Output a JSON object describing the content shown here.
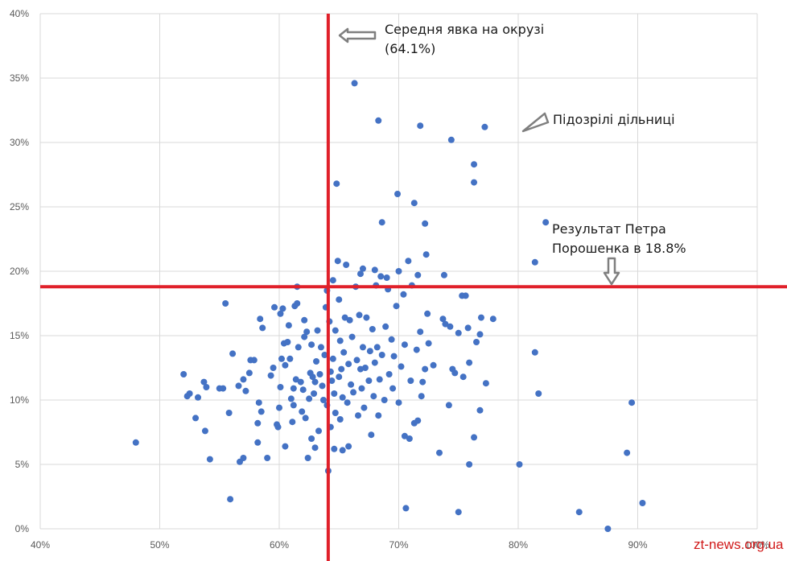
{
  "chart_data": {
    "type": "scatter",
    "xlim": [
      40,
      100
    ],
    "ylim": [
      0,
      40
    ],
    "x_ticks": [
      {
        "value": 40,
        "label": "40%"
      },
      {
        "value": 50,
        "label": "50%"
      },
      {
        "value": 60,
        "label": "60%"
      },
      {
        "value": 70,
        "label": "70%"
      },
      {
        "value": 80,
        "label": "80%"
      },
      {
        "value": 90,
        "label": "90%"
      },
      {
        "value": 100,
        "label": "100%"
      }
    ],
    "y_ticks": [
      {
        "value": 0,
        "label": "0%"
      },
      {
        "value": 5,
        "label": "5%"
      },
      {
        "value": 10,
        "label": "10%"
      },
      {
        "value": 15,
        "label": "15%"
      },
      {
        "value": 20,
        "label": "20%"
      },
      {
        "value": 25,
        "label": "25%"
      },
      {
        "value": 30,
        "label": "30%"
      },
      {
        "value": 35,
        "label": "35%"
      },
      {
        "value": 40,
        "label": "40%"
      }
    ],
    "grid": true,
    "point_color": "#4472C4",
    "line_color": "#E0202A",
    "reference_lines": {
      "vertical_x": 64.1,
      "horizontal_y": 18.8
    },
    "annotations": {
      "turnout_line1": "Середня явка на окрузі",
      "turnout_line2": "(64.1%)",
      "suspicious": "Підозрілі дільниці",
      "result_line1": "Результат Петра",
      "result_line2": "Порошенка в 18.8%"
    },
    "points": [
      [
        48.0,
        6.7
      ],
      [
        52.0,
        12.0
      ],
      [
        52.3,
        10.3
      ],
      [
        52.5,
        10.5
      ],
      [
        53.0,
        8.6
      ],
      [
        53.2,
        10.2
      ],
      [
        53.7,
        11.4
      ],
      [
        53.8,
        7.6
      ],
      [
        53.9,
        11.0
      ],
      [
        54.2,
        5.4
      ],
      [
        55.0,
        10.9
      ],
      [
        55.3,
        10.9
      ],
      [
        55.5,
        17.5
      ],
      [
        55.8,
        9.0
      ],
      [
        55.9,
        2.3
      ],
      [
        56.1,
        13.6
      ],
      [
        56.6,
        11.1
      ],
      [
        56.7,
        5.2
      ],
      [
        57.0,
        11.6
      ],
      [
        57.0,
        5.5
      ],
      [
        57.2,
        10.7
      ],
      [
        57.5,
        12.1
      ],
      [
        57.6,
        13.1
      ],
      [
        57.9,
        13.1
      ],
      [
        58.2,
        8.2
      ],
      [
        58.3,
        9.8
      ],
      [
        58.2,
        6.7
      ],
      [
        58.4,
        16.3
      ],
      [
        58.5,
        9.1
      ],
      [
        58.6,
        15.6
      ],
      [
        59.0,
        5.5
      ],
      [
        59.3,
        11.9
      ],
      [
        59.5,
        12.5
      ],
      [
        59.6,
        17.2
      ],
      [
        59.8,
        8.1
      ],
      [
        59.9,
        7.9
      ],
      [
        60.0,
        9.4
      ],
      [
        60.1,
        11.0
      ],
      [
        60.1,
        16.7
      ],
      [
        60.2,
        13.2
      ],
      [
        60.3,
        17.1
      ],
      [
        60.4,
        14.4
      ],
      [
        60.5,
        12.7
      ],
      [
        60.5,
        6.4
      ],
      [
        60.7,
        14.5
      ],
      [
        60.8,
        15.8
      ],
      [
        60.9,
        13.2
      ],
      [
        61.0,
        10.1
      ],
      [
        61.1,
        8.3
      ],
      [
        61.2,
        9.6
      ],
      [
        61.2,
        10.9
      ],
      [
        61.3,
        17.3
      ],
      [
        61.4,
        11.6
      ],
      [
        61.5,
        17.5
      ],
      [
        61.5,
        18.8
      ],
      [
        61.6,
        14.1
      ],
      [
        61.8,
        11.4
      ],
      [
        61.9,
        9.1
      ],
      [
        62.0,
        10.8
      ],
      [
        62.1,
        16.2
      ],
      [
        62.1,
        14.9
      ],
      [
        62.2,
        8.6
      ],
      [
        62.3,
        15.3
      ],
      [
        62.4,
        5.5
      ],
      [
        62.5,
        10.1
      ],
      [
        62.6,
        12.1
      ],
      [
        62.7,
        7.0
      ],
      [
        62.7,
        14.3
      ],
      [
        62.8,
        11.8
      ],
      [
        62.9,
        10.5
      ],
      [
        63.0,
        11.4
      ],
      [
        63.0,
        6.3
      ],
      [
        63.1,
        13.0
      ],
      [
        63.2,
        15.4
      ],
      [
        63.3,
        7.6
      ],
      [
        63.4,
        12.0
      ],
      [
        63.5,
        14.1
      ],
      [
        63.6,
        11.1
      ],
      [
        63.7,
        10.0
      ],
      [
        63.8,
        13.5
      ],
      [
        63.9,
        17.2
      ],
      [
        64.0,
        9.6
      ],
      [
        64.0,
        18.5
      ],
      [
        64.1,
        4.5
      ],
      [
        64.2,
        16.1
      ],
      [
        64.3,
        12.2
      ],
      [
        64.3,
        7.9
      ],
      [
        64.4,
        11.5
      ],
      [
        64.5,
        13.2
      ],
      [
        64.5,
        19.3
      ],
      [
        64.6,
        10.5
      ],
      [
        64.6,
        6.2
      ],
      [
        64.7,
        15.4
      ],
      [
        64.7,
        9.0
      ],
      [
        64.8,
        26.8
      ],
      [
        64.9,
        20.8
      ],
      [
        65.0,
        17.8
      ],
      [
        65.0,
        11.8
      ],
      [
        65.1,
        14.6
      ],
      [
        65.1,
        8.5
      ],
      [
        65.2,
        12.4
      ],
      [
        65.3,
        6.1
      ],
      [
        65.3,
        10.2
      ],
      [
        65.4,
        13.7
      ],
      [
        65.5,
        16.4
      ],
      [
        65.6,
        20.5
      ],
      [
        65.7,
        9.8
      ],
      [
        65.8,
        12.8
      ],
      [
        65.8,
        6.4
      ],
      [
        65.9,
        16.2
      ],
      [
        66.0,
        11.2
      ],
      [
        66.1,
        14.9
      ],
      [
        66.2,
        10.6
      ],
      [
        66.3,
        34.6
      ],
      [
        66.4,
        18.8
      ],
      [
        66.5,
        13.1
      ],
      [
        66.6,
        8.8
      ],
      [
        66.7,
        16.6
      ],
      [
        66.8,
        12.4
      ],
      [
        66.8,
        19.8
      ],
      [
        66.9,
        10.9
      ],
      [
        67.0,
        20.2
      ],
      [
        67.0,
        14.1
      ],
      [
        67.1,
        9.4
      ],
      [
        67.2,
        12.5
      ],
      [
        67.3,
        16.4
      ],
      [
        67.5,
        11.5
      ],
      [
        67.6,
        13.8
      ],
      [
        67.7,
        7.3
      ],
      [
        67.8,
        15.5
      ],
      [
        67.9,
        10.3
      ],
      [
        68.0,
        20.1
      ],
      [
        68.0,
        12.9
      ],
      [
        68.1,
        18.9
      ],
      [
        68.2,
        14.1
      ],
      [
        68.3,
        31.7
      ],
      [
        68.3,
        8.8
      ],
      [
        68.4,
        11.6
      ],
      [
        68.5,
        19.6
      ],
      [
        68.6,
        23.8
      ],
      [
        68.6,
        13.5
      ],
      [
        68.8,
        10.0
      ],
      [
        68.9,
        15.7
      ],
      [
        69.0,
        19.5
      ],
      [
        69.1,
        18.6
      ],
      [
        69.2,
        12.0
      ],
      [
        69.4,
        14.7
      ],
      [
        69.5,
        10.9
      ],
      [
        69.6,
        13.4
      ],
      [
        69.8,
        17.3
      ],
      [
        69.9,
        26.0
      ],
      [
        70.0,
        20.0
      ],
      [
        70.0,
        9.8
      ],
      [
        70.2,
        12.6
      ],
      [
        70.4,
        18.2
      ],
      [
        70.5,
        14.3
      ],
      [
        70.5,
        7.2
      ],
      [
        70.6,
        1.6
      ],
      [
        70.8,
        20.8
      ],
      [
        70.9,
        7.0
      ],
      [
        71.0,
        11.5
      ],
      [
        71.1,
        18.9
      ],
      [
        71.3,
        25.3
      ],
      [
        71.3,
        8.2
      ],
      [
        71.5,
        13.9
      ],
      [
        71.6,
        8.4
      ],
      [
        71.6,
        19.7
      ],
      [
        71.8,
        31.3
      ],
      [
        71.8,
        15.3
      ],
      [
        71.9,
        10.3
      ],
      [
        72.0,
        11.4
      ],
      [
        72.2,
        23.7
      ],
      [
        72.2,
        12.4
      ],
      [
        72.3,
        21.3
      ],
      [
        72.4,
        16.7
      ],
      [
        72.5,
        14.4
      ],
      [
        72.9,
        12.7
      ],
      [
        73.4,
        5.9
      ],
      [
        73.7,
        16.3
      ],
      [
        73.8,
        19.7
      ],
      [
        73.9,
        15.9
      ],
      [
        74.2,
        9.6
      ],
      [
        74.3,
        15.7
      ],
      [
        74.4,
        30.2
      ],
      [
        74.5,
        12.4
      ],
      [
        74.7,
        12.1
      ],
      [
        75.0,
        1.3
      ],
      [
        75.0,
        15.2
      ],
      [
        75.3,
        18.1
      ],
      [
        75.4,
        11.8
      ],
      [
        75.6,
        18.1
      ],
      [
        75.8,
        15.6
      ],
      [
        75.9,
        12.9
      ],
      [
        75.9,
        5.0
      ],
      [
        76.3,
        26.9
      ],
      [
        76.3,
        28.3
      ],
      [
        76.3,
        7.1
      ],
      [
        76.5,
        14.5
      ],
      [
        76.8,
        9.2
      ],
      [
        76.8,
        15.1
      ],
      [
        76.9,
        16.4
      ],
      [
        77.2,
        31.2
      ],
      [
        77.3,
        11.3
      ],
      [
        77.9,
        16.3
      ],
      [
        80.1,
        5.0
      ],
      [
        81.4,
        20.7
      ],
      [
        81.4,
        13.7
      ],
      [
        81.7,
        10.5
      ],
      [
        82.3,
        23.8
      ],
      [
        85.1,
        1.3
      ],
      [
        87.5,
        0.0
      ],
      [
        89.1,
        5.9
      ],
      [
        89.5,
        9.8
      ],
      [
        90.4,
        2.0
      ]
    ]
  },
  "watermark": "zt-news.org.ua"
}
